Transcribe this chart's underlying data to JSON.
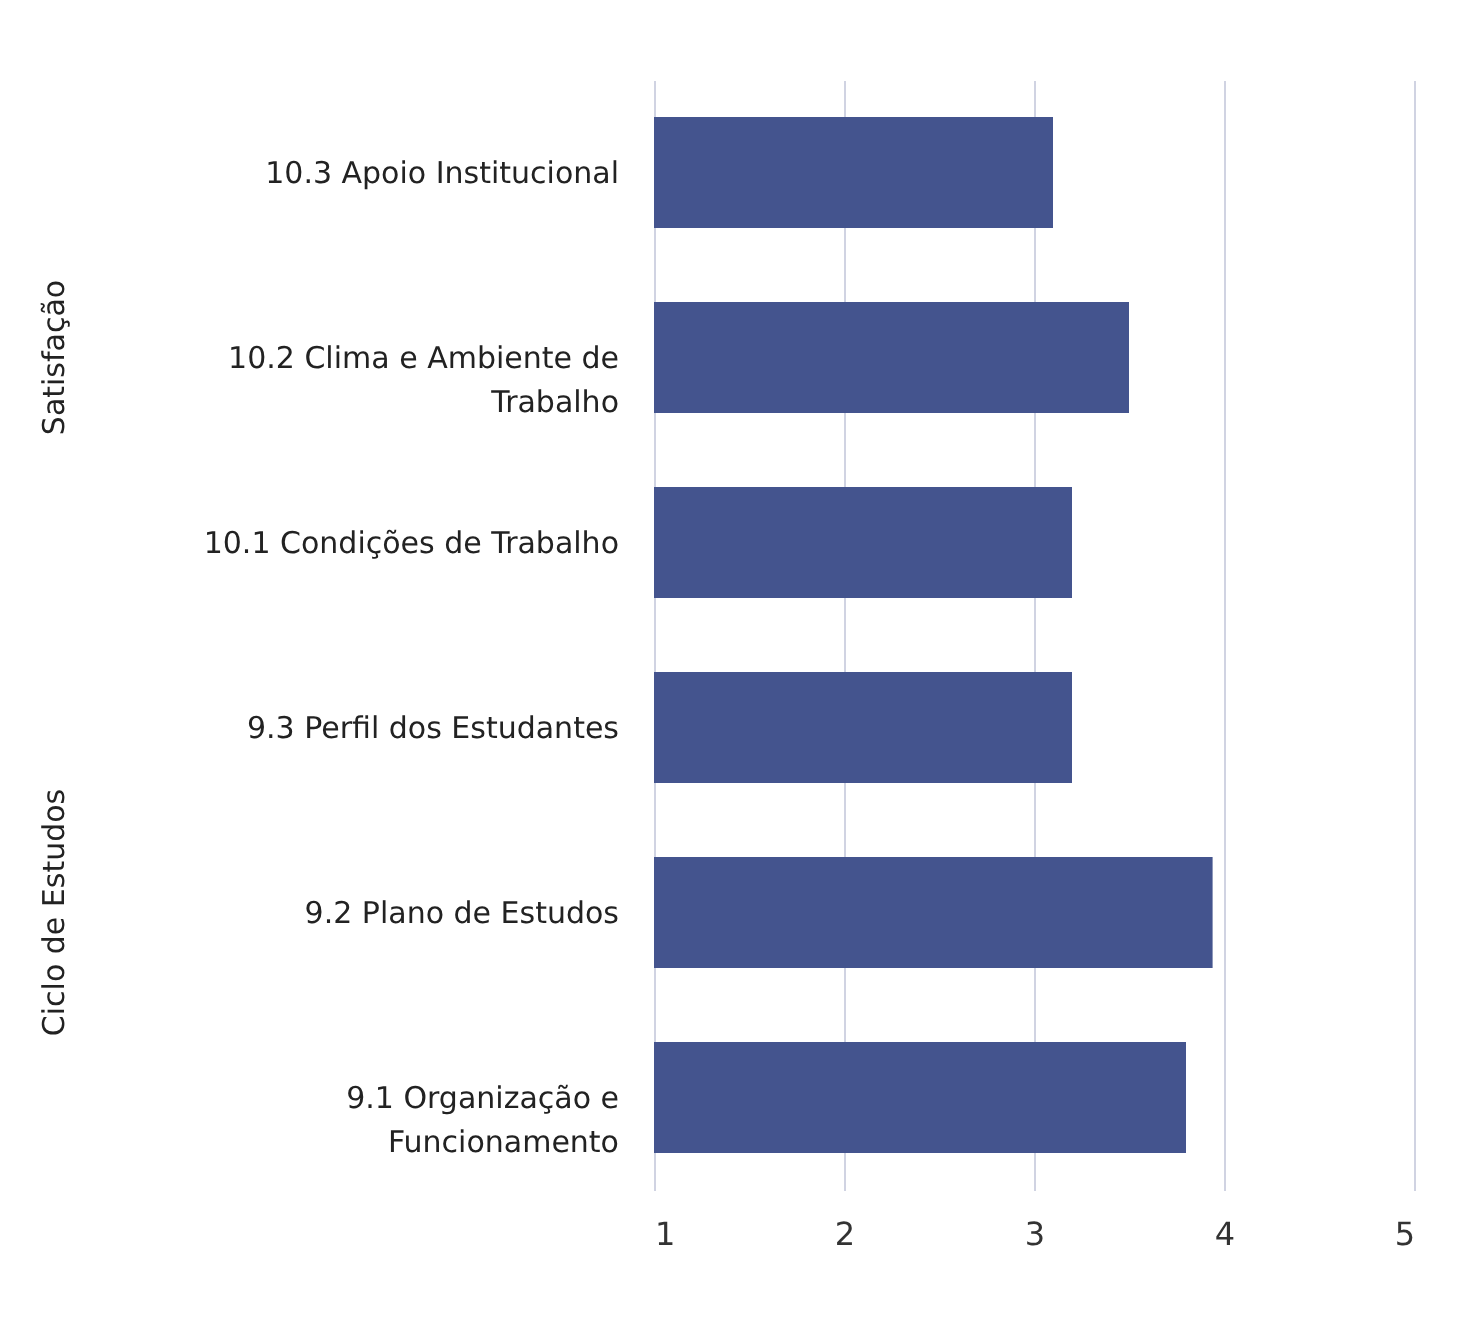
{
  "chart_data": {
    "type": "bar",
    "orientation": "horizontal",
    "categories": [
      "10.3 Apoio Institucional",
      "10.2 Clima e Ambiente de Trabalho",
      "10.1 Condições de Trabalho",
      "9.3 Perfil dos Estudantes",
      "9.2 Plano de Estudos",
      "9.1 Organização e Funcionamento"
    ],
    "values": [
      3.1,
      3.5,
      3.2,
      3.2,
      3.94,
      3.8
    ],
    "color": "#44548e",
    "xlim": [
      1,
      5
    ],
    "xticks": [
      1,
      2,
      3,
      4,
      5
    ],
    "grid": "x",
    "annotations": [
      "Satisfação",
      "Ciclo de Estudos"
    ]
  }
}
